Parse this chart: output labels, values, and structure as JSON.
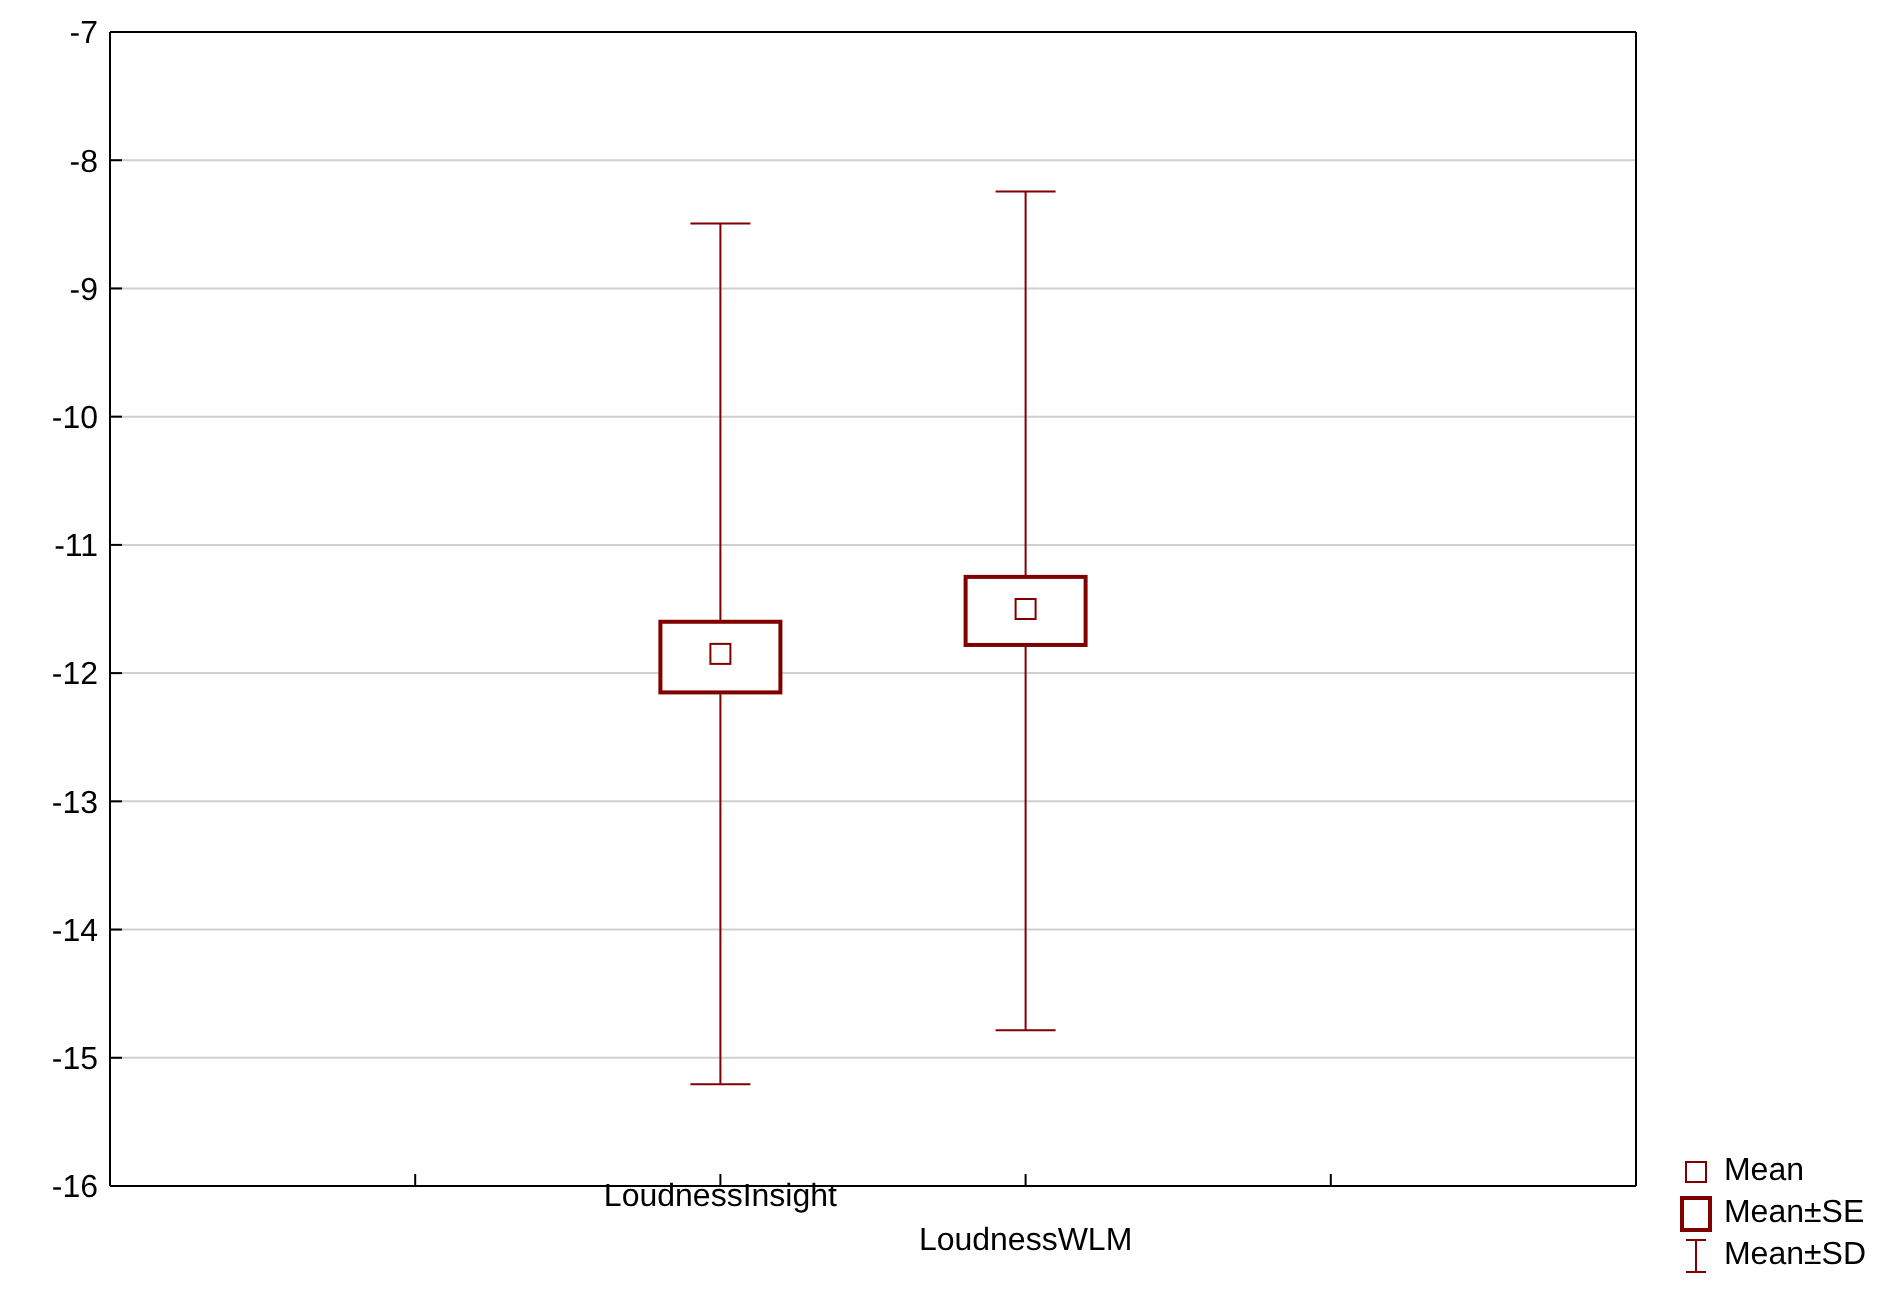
{
  "chart_data": {
    "type": "box",
    "categories": [
      null,
      "LoudnessInsight",
      "LoudnessWLM",
      null
    ],
    "boxes": [
      null,
      {
        "low": -15.2,
        "q1": -12.15,
        "q3": -11.6,
        "high": -8.5,
        "mean": -11.85
      },
      {
        "low": -14.78,
        "q1": -11.78,
        "q3": -11.25,
        "high": -8.25,
        "mean": -11.5
      },
      null
    ],
    "color": "#800000",
    "ylim": [
      -16,
      -7
    ],
    "yticks": [
      -16,
      -15,
      -14,
      -13,
      -12,
      -11,
      -10,
      -9,
      -8,
      -7
    ],
    "grid": "y",
    "annotations": [
      "Mean",
      "Mean±SE",
      "Mean±SD"
    ]
  }
}
